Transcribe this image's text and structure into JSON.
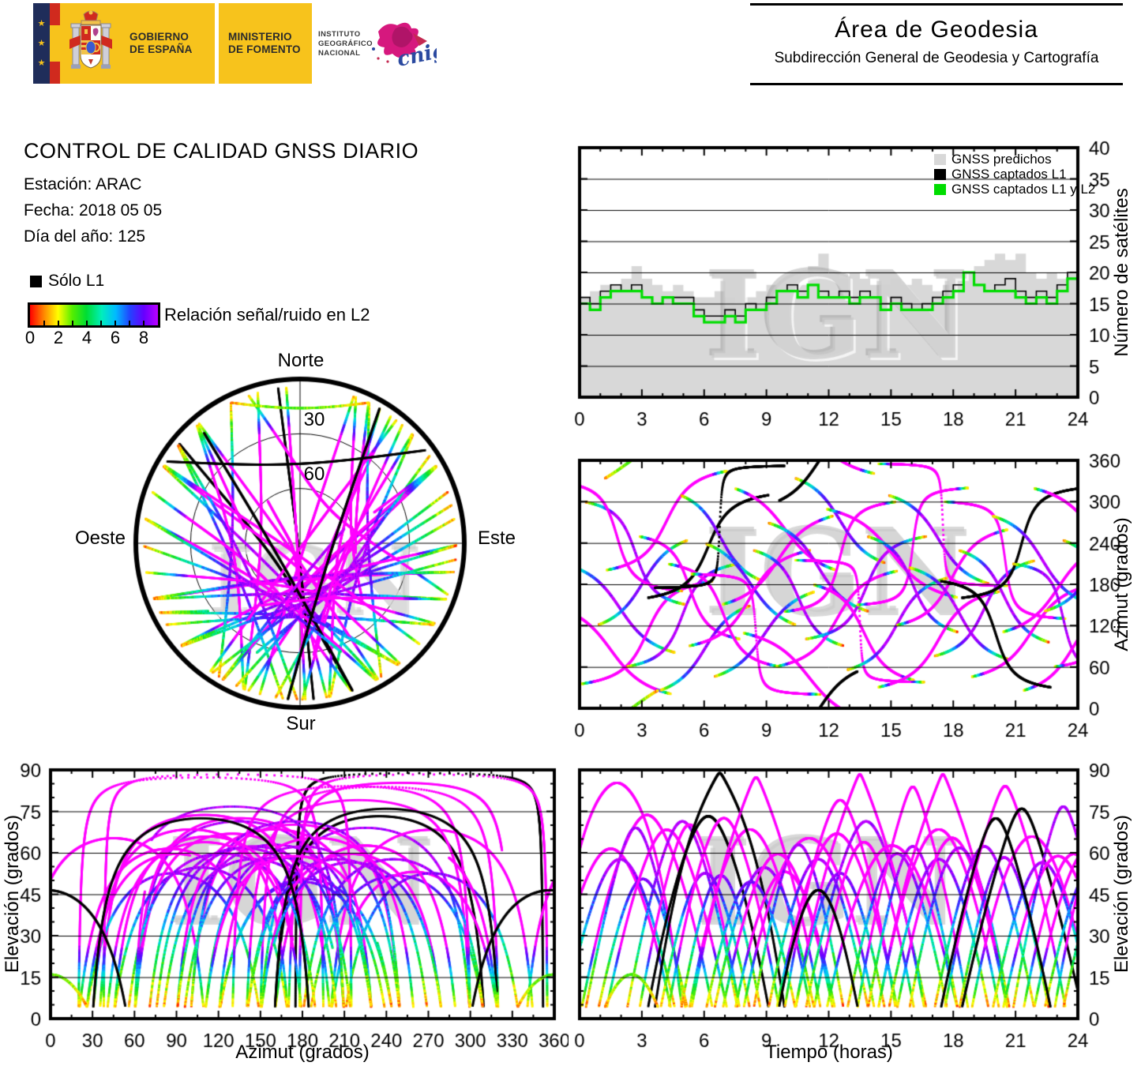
{
  "header_left": {
    "gobierno": [
      "GOBIERNO",
      "DE ESPAÑA"
    ],
    "ministerio": [
      "MINISTERIO",
      "DE FOMENTO"
    ],
    "instituto": [
      "INSTITUTO",
      "GEOGRÁFICO",
      "NACIONAL"
    ],
    "cnig": "cnig"
  },
  "header_right": {
    "title": "Área de Geodesia",
    "subtitle": "Subdirección General de Geodesia y Cartografía"
  },
  "report": {
    "title": "CONTROL DE CALIDAD GNSS DIARIO",
    "station": "Estación: ARAC",
    "date": "Fecha: 2018 05 05",
    "day_of_year": "Día del año: 125"
  },
  "legend": {
    "solo_l1": "Sólo L1",
    "snr_label": "Relación señal/ruido en L2",
    "snr_ticks": [
      "0",
      "2",
      "4",
      "6",
      "8"
    ],
    "snr_range": [
      0,
      9
    ]
  },
  "watermark": "IGN",
  "skyplot_labels": {
    "north": "Norte",
    "south": "Sur",
    "east": "Este",
    "west": "Oeste",
    "ring30": "30",
    "ring60": "60"
  },
  "chart_data": {
    "charts": [
      {
        "id": "satellite_count",
        "type": "area",
        "x": {
          "min": 0,
          "max": 24,
          "major": 3,
          "minor": 1,
          "ticks": [
            "0",
            "3",
            "6",
            "9",
            "12",
            "15",
            "18",
            "21",
            "24"
          ]
        },
        "y": {
          "min": 0,
          "max": 40,
          "major": 5,
          "label": "Número de satélites",
          "ticks": [
            "0",
            "5",
            "10",
            "15",
            "20",
            "25",
            "30",
            "35",
            "40"
          ]
        },
        "dt": 0.5,
        "series": [
          {
            "name": "GNSS predichos",
            "color": "#d8d8d8",
            "style": "area",
            "values": [
              16,
              17,
              18,
              18,
              19,
              21,
              19,
              18,
              17,
              18,
              17,
              16,
              16,
              17,
              16,
              15,
              16,
              17,
              18,
              17,
              18,
              18,
              21,
              23,
              20,
              19,
              20,
              19,
              18,
              18,
              19,
              18,
              19,
              18,
              17,
              18,
              19,
              20,
              21,
              22,
              23,
              22,
              23,
              20,
              19,
              20,
              19,
              20,
              18
            ]
          },
          {
            "name": "GNSS captados L1",
            "color": "#000000",
            "style": "step",
            "values": [
              16,
              15,
              17,
              18,
              17,
              18,
              16,
              15,
              16,
              16,
              16,
              14,
              13,
              13,
              14,
              13,
              15,
              14,
              16,
              17,
              18,
              17,
              18,
              17,
              16,
              17,
              16,
              17,
              16,
              15,
              16,
              15,
              14,
              15,
              16,
              17,
              18,
              20,
              18,
              17,
              18,
              19,
              17,
              16,
              17,
              16,
              18,
              20,
              18
            ]
          },
          {
            "name": "GNSS captados L1 y L2",
            "color": "#00dd00",
            "style": "step",
            "values": [
              15,
              14,
              16,
              17,
              17,
              17,
              16,
              15,
              16,
              15,
              15,
              13,
              12,
              12,
              13,
              12,
              14,
              14,
              15,
              17,
              17,
              16,
              18,
              16,
              16,
              16,
              15,
              16,
              16,
              14,
              15,
              14,
              14,
              14,
              15,
              16,
              17,
              20,
              18,
              17,
              17,
              17,
              16,
              15,
              16,
              15,
              17,
              19,
              17
            ]
          }
        ]
      },
      {
        "id": "skyplot",
        "type": "scatter-polar",
        "rings_deg": [
          30,
          60
        ],
        "elev_cutoff": 4.3
      },
      {
        "id": "azimuth_vs_time",
        "type": "scatter",
        "x": {
          "min": 0,
          "max": 24,
          "major": 3,
          "minor": 1,
          "ticks": [
            "0",
            "3",
            "6",
            "9",
            "12",
            "15",
            "18",
            "21",
            "24"
          ]
        },
        "y": {
          "min": 0,
          "max": 360,
          "major": 60,
          "label": "Azimut (grados)",
          "ticks": [
            "0",
            "60",
            "120",
            "180",
            "240",
            "300",
            "360"
          ]
        }
      },
      {
        "id": "elevation_vs_azimuth",
        "type": "scatter",
        "x": {
          "min": 0,
          "max": 360,
          "major": 30,
          "minor": 15,
          "label": "Azimut (grados)",
          "ticks": [
            "0",
            "30",
            "60",
            "90",
            "120",
            "150",
            "180",
            "210",
            "240",
            "270",
            "300",
            "330",
            "360"
          ]
        },
        "y": {
          "min": 0,
          "max": 90,
          "major": 15,
          "minor": 5,
          "label": "Elevación (grados)",
          "ticks": [
            "0",
            "15",
            "30",
            "45",
            "60",
            "75",
            "90"
          ]
        }
      },
      {
        "id": "elevation_vs_time",
        "type": "scatter",
        "x": {
          "min": 0,
          "max": 24,
          "major": 3,
          "minor": 1,
          "label": "Tiempo (horas)",
          "ticks": [
            "0",
            "3",
            "6",
            "9",
            "12",
            "15",
            "18",
            "21",
            "24"
          ]
        },
        "y": {
          "min": 0,
          "max": 90,
          "major": 15,
          "minor": 5,
          "label": "Elevación (grados)",
          "ticks": [
            "0",
            "15",
            "30",
            "45",
            "60",
            "75",
            "90"
          ]
        }
      }
    ],
    "snr_colormap": [
      "#ff0000",
      "#ff8800",
      "#ffff00",
      "#55ee00",
      "#00dd33",
      "#00eebb",
      "#00bbff",
      "#2244ff",
      "#6600ff",
      "#bb00ff"
    ],
    "track_color_magenta": "#ff00ff",
    "track_color_l1only": "#000000",
    "satellite_passes": [
      [
        150,
        20,
        -1.5,
        6,
        0.25,
        "m"
      ],
      [
        210,
        80,
        -0.8,
        5.5,
        0.15,
        "s"
      ],
      [
        35,
        185,
        0,
        6.5,
        0.3,
        "m"
      ],
      [
        300,
        150,
        0.2,
        5,
        0.1,
        "s"
      ],
      [
        120,
        245,
        0.8,
        4.5,
        0.05,
        "s"
      ],
      [
        200,
        345,
        1.2,
        6,
        0.2,
        "m"
      ],
      [
        330,
        170,
        -1.4,
        6.4,
        0.7,
        "m"
      ],
      [
        60,
        210,
        2.2,
        5.5,
        0.2,
        "s"
      ],
      [
        250,
        100,
        2.8,
        5,
        0.15,
        "m"
      ],
      [
        160,
        310,
        3.2,
        6,
        0.28,
        "b"
      ],
      [
        25,
        150,
        3.8,
        4.5,
        0.1,
        "s"
      ],
      [
        210,
        60,
        4.2,
        5.5,
        0.25,
        "m"
      ],
      [
        310,
        185,
        4.8,
        4,
        0.08,
        "s"
      ],
      [
        90,
        230,
        5.2,
        6,
        0.3,
        "m"
      ],
      [
        175,
        352,
        3.55,
        6.4,
        0.5,
        "b"
      ],
      [
        240,
        120,
        6,
        4.5,
        0.1,
        "s"
      ],
      [
        45,
        170,
        6.4,
        5,
        0.15,
        "s"
      ],
      [
        150,
        280,
        6.8,
        5.5,
        0.2,
        "m"
      ],
      [
        320,
        200,
        7.4,
        5,
        0.18,
        "m"
      ],
      [
        110,
        340,
        7.8,
        6.5,
        0.35,
        "m"
      ],
      [
        230,
        90,
        8.3,
        4.5,
        0.12,
        "s"
      ],
      [
        195,
        20,
        5.3,
        6.4,
        0.3,
        "m"
      ],
      [
        270,
        140,
        9,
        5,
        0.15,
        "s"
      ],
      [
        60,
        200,
        9.4,
        6,
        0.25,
        "m"
      ],
      [
        140,
        300,
        9.8,
        5.5,
        0.3,
        "m"
      ],
      [
        335,
        210,
        10.3,
        4.5,
        0.1,
        "s"
      ],
      [
        100,
        250,
        10.8,
        6,
        0.2,
        "s"
      ],
      [
        180,
        40,
        11.2,
        5,
        0.15,
        "m"
      ],
      [
        290,
        160,
        11.8,
        6.5,
        0.28,
        "m"
      ],
      [
        215,
        38,
        10.3,
        6.4,
        0.3,
        "m"
      ],
      [
        55,
        190,
        12.8,
        5,
        0.12,
        "s"
      ],
      [
        150,
        320,
        13.3,
        5.5,
        0.22,
        "m"
      ],
      [
        250,
        110,
        13.8,
        4.5,
        0.1,
        "s"
      ],
      [
        30,
        170,
        14.3,
        6,
        0.3,
        "m"
      ],
      [
        310,
        180,
        14.8,
        5,
        0.15,
        "s"
      ],
      [
        120,
        260,
        15.2,
        5.5,
        0.2,
        "m"
      ],
      [
        205,
        70,
        15.8,
        5,
        0.18,
        "s"
      ],
      [
        355,
        178,
        14.3,
        6.4,
        0.3,
        "m"
      ],
      [
        75,
        215,
        17,
        5,
        0.1,
        "s"
      ],
      [
        300,
        130,
        17.5,
        6,
        0.25,
        "m"
      ],
      [
        230,
        95,
        18.2,
        4.5,
        0.08,
        "s"
      ],
      [
        45,
        180,
        18.8,
        6,
        0.3,
        "m"
      ],
      [
        160,
        320,
        18.3,
        6,
        0.1,
        "b"
      ],
      [
        280,
        150,
        19.8,
        5,
        0.12,
        "s"
      ],
      [
        110,
        240,
        20.3,
        5.5,
        0.18,
        "m"
      ],
      [
        210,
        50,
        20.8,
        5,
        0.15,
        "s"
      ],
      [
        25,
        155,
        21.3,
        5,
        0.2,
        "m"
      ],
      [
        320,
        190,
        21.8,
        6,
        0.3,
        "m"
      ],
      [
        140,
        270,
        22.3,
        5,
        0.1,
        "s"
      ],
      [
        60,
        220,
        22.8,
        5.5,
        0.25,
        "m"
      ],
      [
        245,
        120,
        23.2,
        4.5,
        0.1,
        "s"
      ],
      [
        185,
        30,
        17.3,
        5.5,
        0.1,
        "b"
      ],
      [
        300,
        55,
        9.5,
        4,
        0.1,
        "b"
      ],
      [
        330,
        30,
        1,
        3,
        0.05,
        "s"
      ]
    ]
  }
}
